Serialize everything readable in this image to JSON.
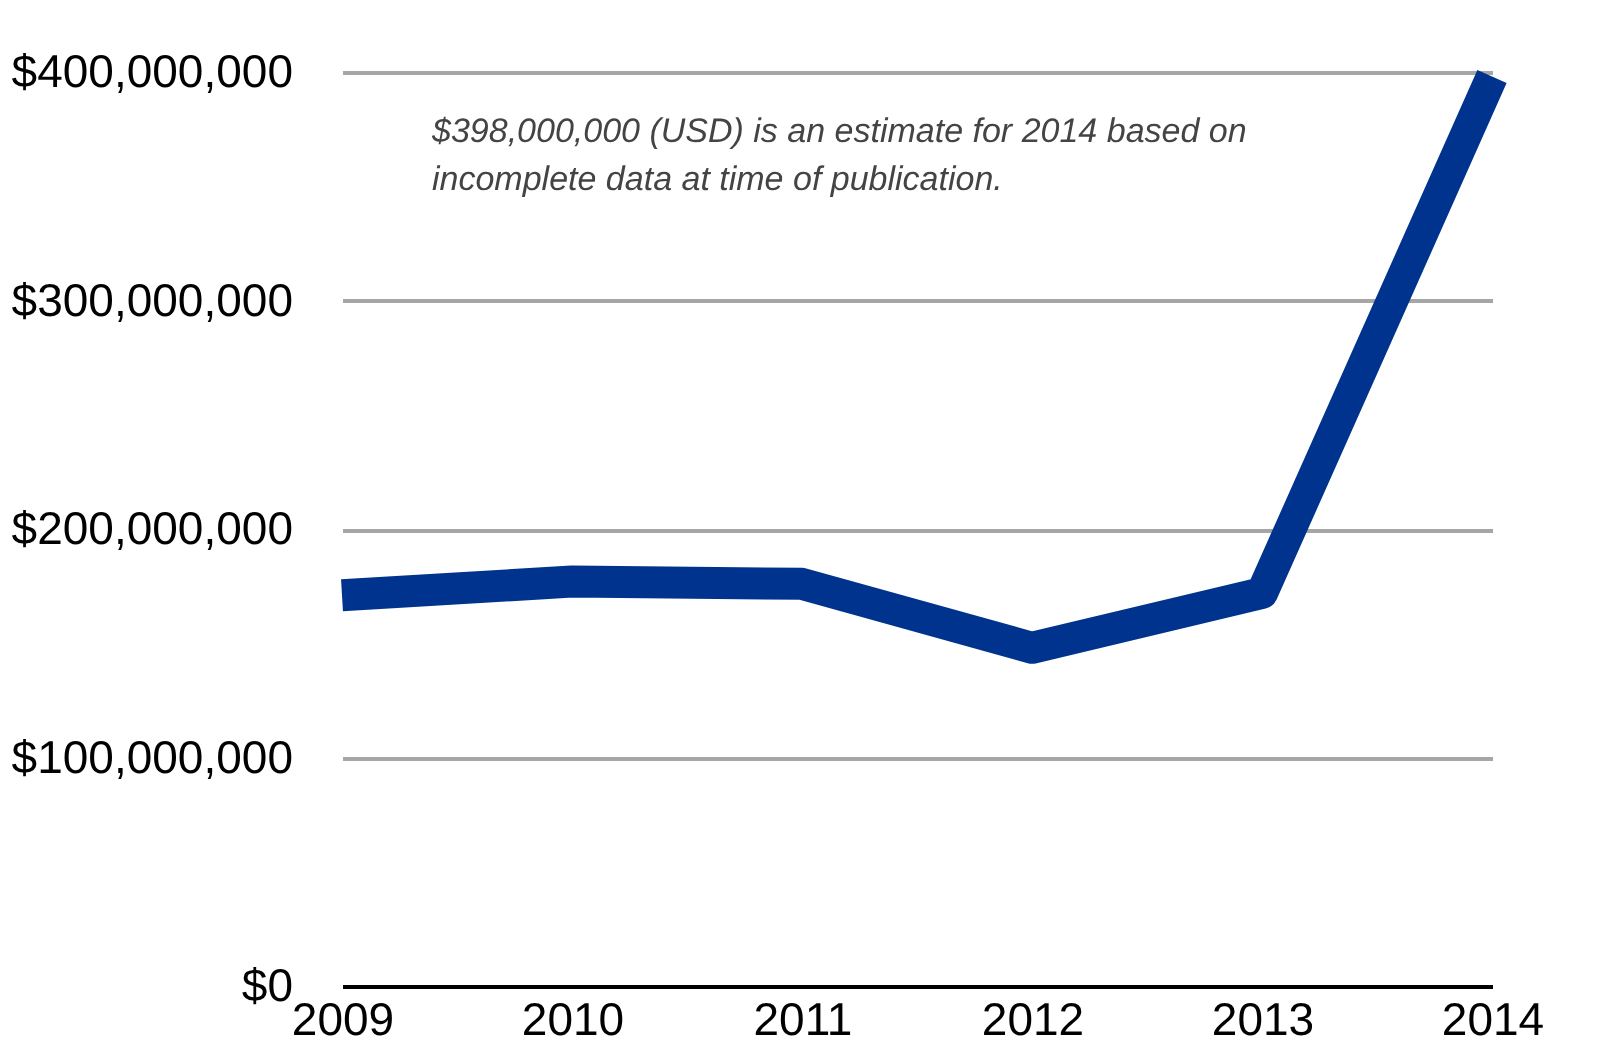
{
  "chart_data": {
    "type": "line",
    "categories": [
      "2009",
      "2010",
      "2011",
      "2012",
      "2013",
      "2014"
    ],
    "series": [
      {
        "color": "#00338d",
        "values": [
          171000000,
          177000000,
          176000000,
          148000000,
          172000000,
          398000000
        ]
      }
    ],
    "ylim": [
      0,
      400000000
    ],
    "yticks": [
      {
        "value": 0,
        "label": "$0"
      },
      {
        "value": 100000000,
        "label": "$100,000,000"
      },
      {
        "value": 200000000,
        "label": "$200,000,000"
      },
      {
        "value": 300000000,
        "label": "$300,000,000"
      },
      {
        "value": 400000000,
        "label": "$400,000,000"
      }
    ],
    "grid": "y",
    "legend": false,
    "marker": "none",
    "line_style": "solid",
    "annotations": [
      "$398,000,000 (USD) is an estimate for 2014 based on incomplete data at time of publication."
    ]
  }
}
